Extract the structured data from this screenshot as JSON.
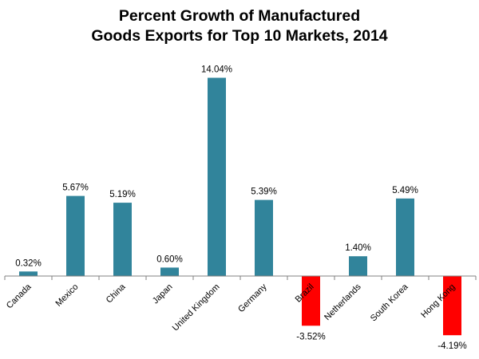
{
  "chart_data": {
    "type": "bar",
    "title": "Percent Growth  of Manufactured Goods Exports for Top 10 Markets, 2014",
    "title_lines": [
      "Percent Growth  of Manufactured",
      "Goods Exports for Top 10 Markets, 2014"
    ],
    "xlabel": "",
    "ylabel": "",
    "categories": [
      "Canada",
      "Mexico",
      "China",
      "Japan",
      "United Kingdom",
      "Germany",
      "Brazil",
      "Netherlands",
      "South Korea",
      "Hong Kong"
    ],
    "values": [
      0.32,
      5.67,
      5.19,
      0.6,
      14.04,
      5.39,
      -3.52,
      1.4,
      5.49,
      -4.19
    ],
    "data_labels": [
      "0.32%",
      "5.67%",
      "5.19%",
      "0.60%",
      "14.04%",
      "5.39%",
      "-3.52%",
      "1.40%",
      "5.49%",
      "-4.19%"
    ],
    "ylim": [
      -4.19,
      14.04
    ],
    "grid": false,
    "legend": "none",
    "colors": {
      "positive": "#31849B",
      "negative": "#FF0000",
      "axis": "#808080"
    }
  }
}
